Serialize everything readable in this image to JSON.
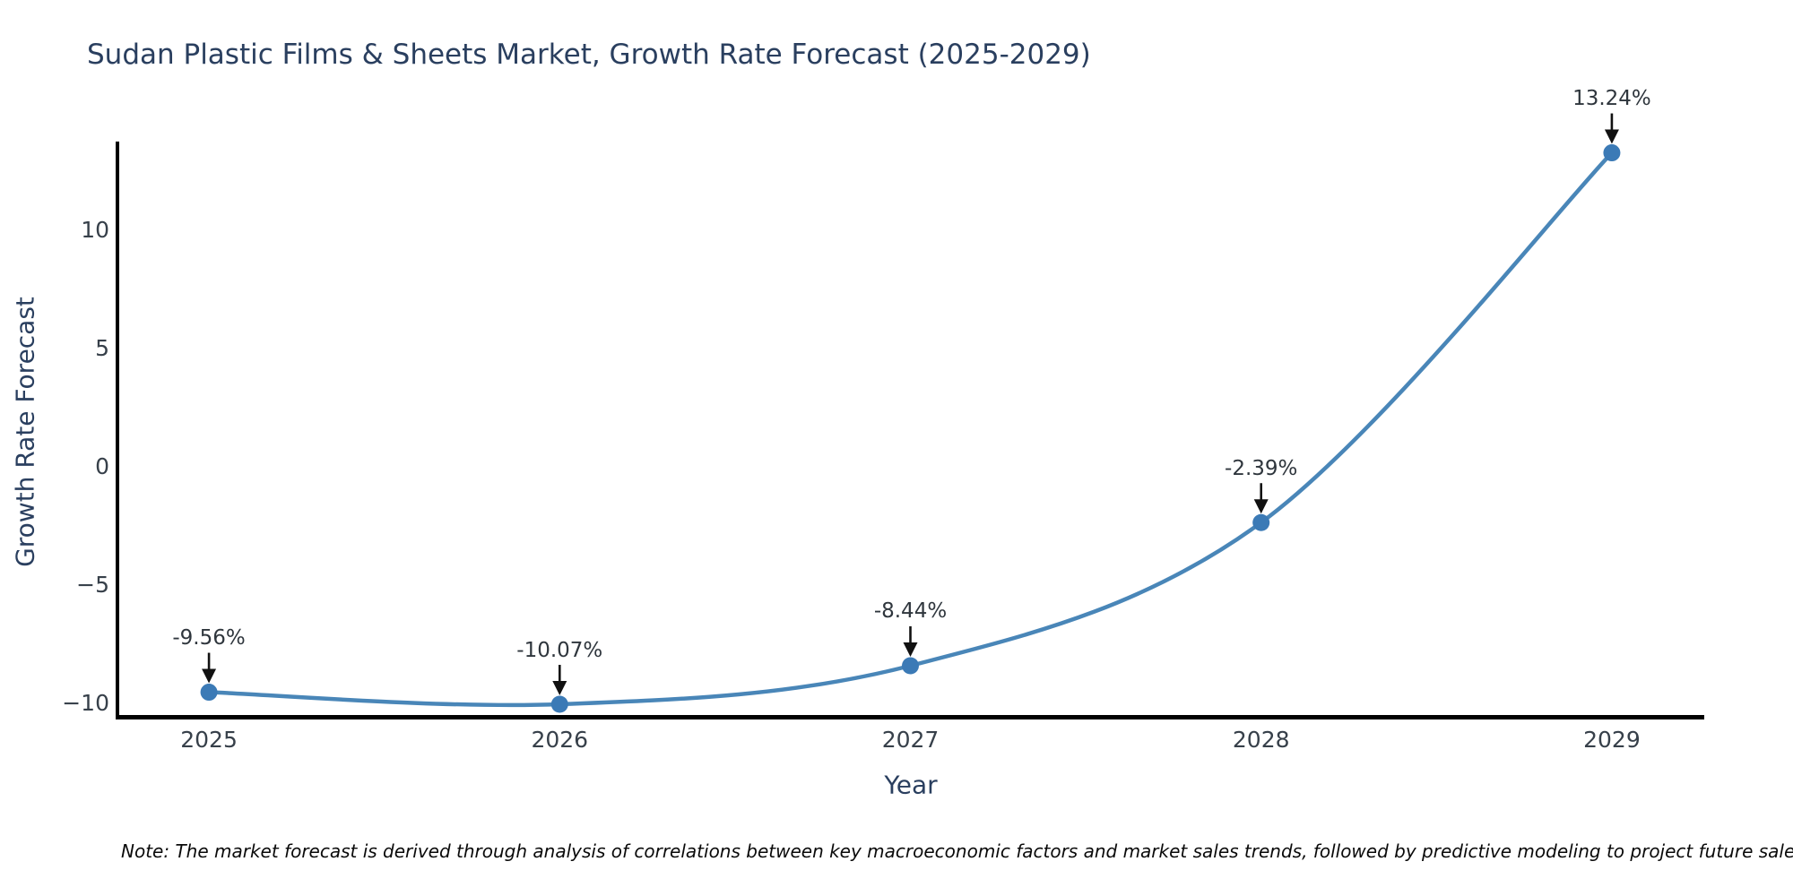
{
  "note": "Note: The market forecast is derived through analysis of correlations between key macroeconomic factors and market sales trends, followed by predictive modeling to project future sales.",
  "chart_data": {
    "type": "line",
    "title": "Sudan Plastic Films & Sheets Market, Growth Rate Forecast (2025-2029)",
    "xlabel": "Year",
    "ylabel": "Growth Rate Forecast",
    "categories": [
      "2025",
      "2026",
      "2027",
      "2028",
      "2029"
    ],
    "values": [
      -9.56,
      -10.07,
      -8.44,
      -2.39,
      13.24
    ],
    "point_labels": [
      "-9.56%",
      "-10.07%",
      "-8.44%",
      "-2.39%",
      "13.24%"
    ],
    "yticks": [
      -10,
      -5,
      0,
      5,
      10
    ],
    "ylim": [
      -10.6,
      13.64
    ],
    "line_shape": "spline",
    "grid": false,
    "legend_position": "none",
    "line_color": "#4986b8",
    "marker_color": "#3b7ab6",
    "arrow_color": "#111111",
    "axis_color": "#000000",
    "title_color": "#2a3f5f",
    "tick_color": "#37404a"
  }
}
